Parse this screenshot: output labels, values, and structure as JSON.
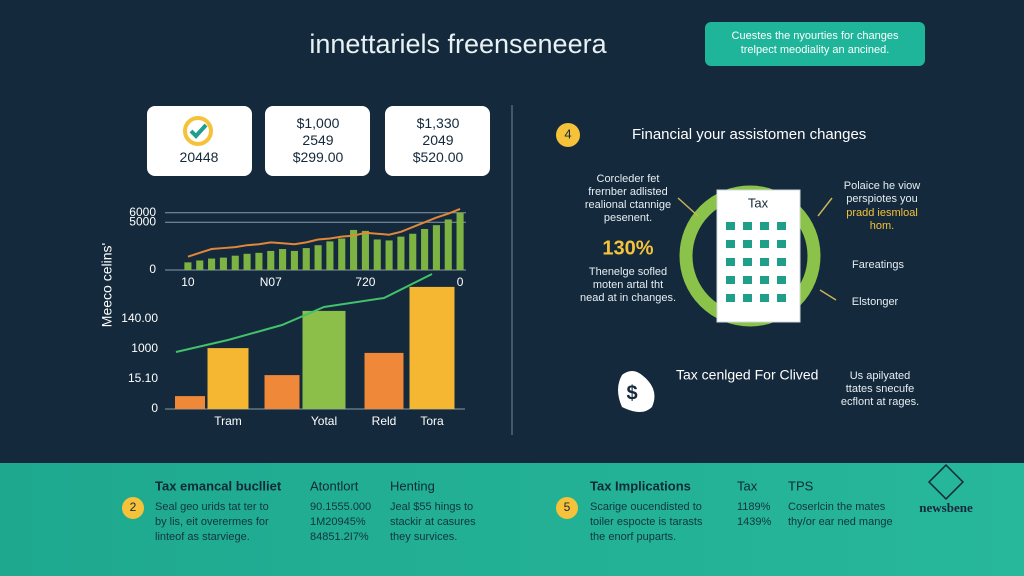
{
  "header": {
    "title": "innettariels freenseneera",
    "badge": [
      "Cuestes the nyourties for changes",
      "trelpect meodiality an ancined."
    ]
  },
  "cards": [
    {
      "lines": [
        "20448"
      ]
    },
    {
      "lines": [
        "$1,000",
        "2549",
        "$299.00"
      ]
    },
    {
      "lines": [
        "$1,330",
        "2049",
        "$520.00"
      ]
    }
  ],
  "y_axis_title": "Meeco celins'",
  "chart_data": [
    {
      "type": "bar",
      "categories": [
        "10",
        null,
        null,
        null,
        null,
        null,
        null,
        "N07",
        null,
        null,
        null,
        null,
        null,
        null,
        null,
        "720",
        null,
        null,
        null,
        null,
        null,
        null,
        null,
        "0"
      ],
      "series": [
        {
          "name": null,
          "color": "#7cb342",
          "values": [
            800,
            1000,
            1200,
            1300,
            1500,
            1700,
            1800,
            2000,
            2200,
            2000,
            2300,
            2600,
            3000,
            3300,
            4200,
            4100,
            3200,
            3100,
            3500,
            3800,
            4300,
            4700,
            5300,
            6000
          ]
        },
        {
          "type": "line",
          "color": "#e0873a",
          "values": [
            1400,
            1800,
            2200,
            2300,
            2400,
            2600,
            2700,
            2900,
            2800,
            2700,
            2900,
            3200,
            3300,
            3500,
            3600,
            3900,
            3800,
            3700,
            4000,
            4500,
            5000,
            5500,
            5900,
            6400
          ]
        }
      ],
      "ylim": [
        0,
        6500
      ],
      "yticks": [
        0,
        5000,
        6000
      ],
      "grid": true
    },
    {
      "type": "bar",
      "categories": [
        null,
        "Tram",
        null,
        "Yotal",
        "Reld",
        "Tora"
      ],
      "values": [
        0.43,
        2.03,
        1.13,
        3.27,
        1.87,
        4.07
      ],
      "colors": [
        "#f0883a",
        "#f5b731",
        "#f0883a",
        "#8bbf4a",
        "#f0883a",
        "#f5b731"
      ],
      "line": {
        "color": "#43c16b",
        "values": [
          1.9,
          2.3,
          2.8,
          3.4,
          3.7,
          4.5
        ]
      },
      "ylim": [
        0,
        4.9
      ],
      "ylabels": [
        "0",
        "15.10",
        "1000",
        "140.00"
      ]
    }
  ],
  "right_panel": {
    "step": "4",
    "heading": "Financial your assistomen changes",
    "left_text": [
      "Corcleder fet",
      "frernber adlisted",
      "realional ctannige",
      "pesenent."
    ],
    "percent": "130%",
    "left_text2": [
      "Thenelge sofled",
      "moten artal tht",
      "nead at in changes."
    ],
    "doc_title": "Tax",
    "right_text": [
      "Polaice he viow",
      "perspiotes you"
    ],
    "right_highlight": [
      "pradd iesmloal",
      "hom."
    ],
    "label1": "Fareatings",
    "label2": "Elstonger",
    "icon": "$",
    "bottom_heading": "Tax cenlged For Clived",
    "bottom_text": [
      "Us apilyated",
      "ttates snecufe",
      "ecflont at rages."
    ]
  },
  "footer": {
    "step1": "2",
    "col1_title": "Tax emancal buclliet",
    "col1_text": [
      "Seal geo urids tat ter to",
      "by lis, eit overermes for",
      "linteof as starviege."
    ],
    "col2_title": "Atontlort",
    "col2_text": [
      "90.1555.000",
      "1M20945%",
      "84851.2I7%"
    ],
    "col3_title": "Henting",
    "col3_text": [
      "Jeal $55 hings to",
      "stackir at casures",
      "they survices."
    ],
    "step2": "5",
    "col4_title": "Tax Implications",
    "col4_text": [
      "Scarige oucendisted to",
      "toiler espocte is tarasts",
      "the enorf puparts."
    ],
    "col5_title": "Tax",
    "col5_text": [
      "1189%",
      "1439%"
    ],
    "col6_title": "TPS",
    "col6_text": [
      "Coserlcin the mates",
      "thy/or ear ned mange"
    ],
    "logo": "newsbene"
  }
}
